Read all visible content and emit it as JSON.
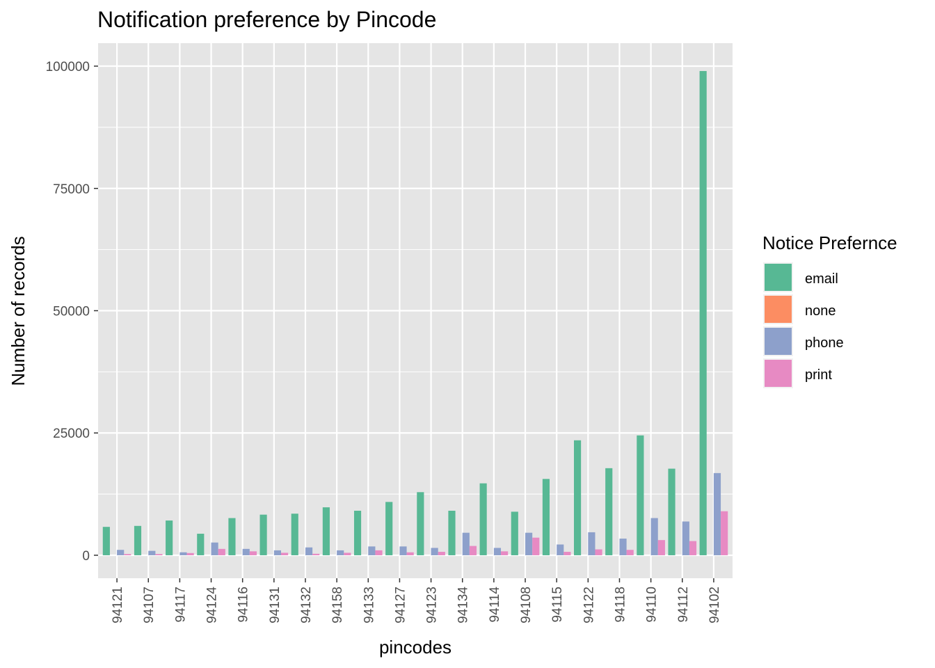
{
  "chart_data": {
    "type": "bar",
    "title": "Notification preference by Pincode",
    "xlabel": "pincodes",
    "ylabel": "Number of records",
    "ylim": [
      -4700,
      104700
    ],
    "yticks": [
      0,
      25000,
      50000,
      75000,
      100000
    ],
    "ytick_labels": [
      "0",
      "25000",
      "50000",
      "75000",
      "100000"
    ],
    "grid": true,
    "legend_title": "Notice Prefernce",
    "legend_position": "right",
    "categories": [
      "94121",
      "94107",
      "94117",
      "94124",
      "94116",
      "94131",
      "94132",
      "94158",
      "94133",
      "94127",
      "94123",
      "94134",
      "94114",
      "94108",
      "94115",
      "94122",
      "94118",
      "94110",
      "94112",
      "94102"
    ],
    "series": [
      {
        "name": "email",
        "color": "#57B894",
        "values": [
          5800,
          6000,
          7100,
          4400,
          7600,
          8300,
          8500,
          9800,
          9100,
          10900,
          12900,
          9100,
          14700,
          8900,
          15600,
          23500,
          17800,
          24500,
          17700,
          99000
        ]
      },
      {
        "name": "none",
        "color": "#FC8D62",
        "values": [
          0,
          0,
          0,
          0,
          0,
          0,
          0,
          0,
          0,
          0,
          0,
          0,
          0,
          0,
          0,
          0,
          0,
          0,
          0,
          0
        ]
      },
      {
        "name": "phone",
        "color": "#8DA0CB",
        "values": [
          1100,
          900,
          600,
          2600,
          1300,
          1000,
          1600,
          1000,
          1800,
          1800,
          1500,
          4600,
          1500,
          4600,
          2200,
          4700,
          3400,
          7600,
          6900,
          16800
        ]
      },
      {
        "name": "print",
        "color": "#E78AC3",
        "values": [
          250,
          250,
          450,
          1300,
          800,
          500,
          300,
          500,
          1000,
          600,
          700,
          1900,
          800,
          3600,
          700,
          1200,
          1100,
          3100,
          2900,
          9000
        ]
      }
    ]
  },
  "colors": {
    "panel_background": "#E5E5E5",
    "grid_line": "#FFFFFF",
    "tick_text": "#4D4D4D"
  }
}
